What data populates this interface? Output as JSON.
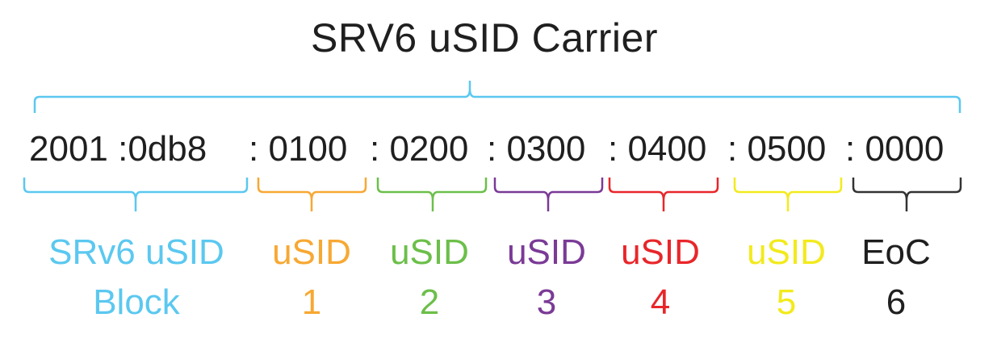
{
  "title": "SRV6 uSID Carrier",
  "address": {
    "block": "2001 :0db8",
    "segments": [
      ": 0100",
      ": 0200",
      ": 0300",
      ": 0400",
      ": 0500",
      ": 0000"
    ]
  },
  "colors": {
    "carrier": "#5bc8f0",
    "block": "#5bc8f0",
    "usid1": "#f7a833",
    "usid2": "#6cbf4a",
    "usid3": "#7a3a96",
    "usid4": "#e8262a",
    "usid5": "#f2ea1c",
    "eoc": "#333333"
  },
  "labels": {
    "block": {
      "line1": "SRv6 uSID",
      "line2": "Block"
    },
    "usid1": {
      "line1": "uSID",
      "line2": "1"
    },
    "usid2": {
      "line1": "uSID",
      "line2": "2"
    },
    "usid3": {
      "line1": "uSID",
      "line2": "3"
    },
    "usid4": {
      "line1": "uSID",
      "line2": "4"
    },
    "usid5": {
      "line1": "uSID",
      "line2": "5"
    },
    "eoc": {
      "line1": "EoC",
      "line2": "6"
    }
  }
}
